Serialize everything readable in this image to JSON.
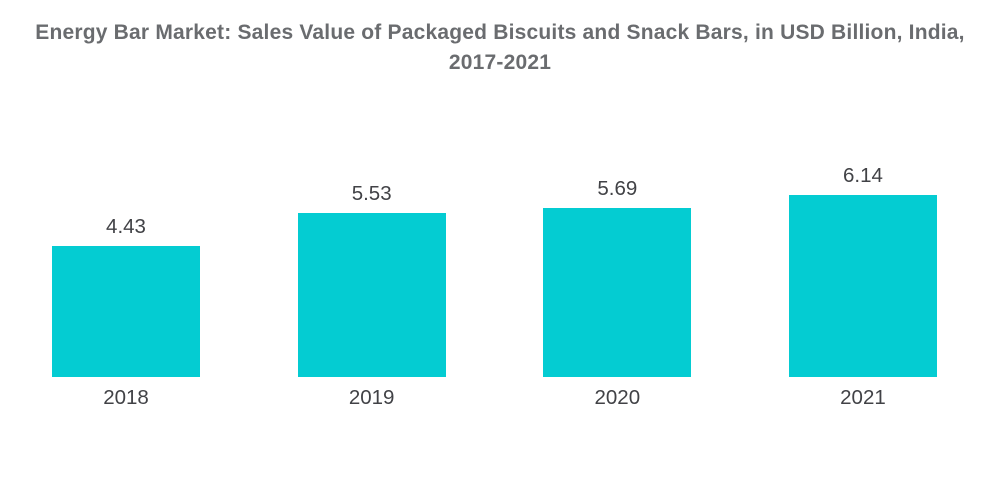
{
  "title": {
    "lines": [
      "Energy Bar Market: Sales Value of Packaged Biscuits and Snack Bars, in USD Billion, India,",
      "2017-2021"
    ]
  },
  "colors": {
    "bar": "#04ccd2",
    "title_text": "#6a6c6f",
    "label_text": "#414246",
    "background": "#ffffff"
  },
  "chart_data": {
    "type": "bar",
    "title": "Energy Bar Market: Sales Value of Packaged Biscuits and Snack Bars, in USD Billion, India, 2017-2021",
    "categories": [
      "2018",
      "2019",
      "2020",
      "2021"
    ],
    "values": [
      4.43,
      5.53,
      5.69,
      6.14
    ],
    "value_labels": [
      "4.43",
      "5.53",
      "5.69",
      "6.14"
    ],
    "xlabel": "",
    "ylabel": "",
    "ylim": [
      0,
      6.8
    ],
    "grid": false,
    "legend": false,
    "bar_color": "#04ccd2",
    "data_labels_position": "above-bars"
  }
}
